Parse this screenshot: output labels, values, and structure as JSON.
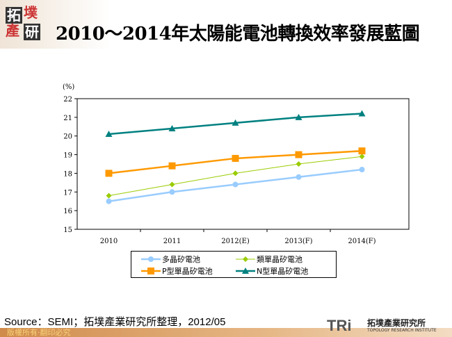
{
  "header": {
    "logo_text": "拓墣產研",
    "title": "2010～2014年太陽能電池轉換效率發展藍圖"
  },
  "chart_data": {
    "type": "line",
    "title": "",
    "ylabel": "(%)",
    "xlabel": "",
    "categories": [
      "2010",
      "2011",
      "2012(E)",
      "2013(F)",
      "2014(F)"
    ],
    "ylim": [
      15,
      22
    ],
    "yticks": [
      "15",
      "16",
      "17",
      "18",
      "19",
      "20",
      "21",
      "22"
    ],
    "grid": false,
    "legend_position": "bottom",
    "series": [
      {
        "name": "多晶矽電池",
        "values": [
          16.5,
          17.0,
          17.4,
          17.8,
          18.2
        ],
        "color": "#99ccff",
        "marker": "circle"
      },
      {
        "name": "類單晶矽電池",
        "values": [
          16.8,
          17.4,
          18.0,
          18.5,
          18.9
        ],
        "color": "#99cc00",
        "marker": "diamond"
      },
      {
        "name": "P型單晶矽電池",
        "values": [
          18.0,
          18.4,
          18.8,
          19.0,
          19.2
        ],
        "color": "#ff9900",
        "marker": "square"
      },
      {
        "name": "N型單晶矽電池",
        "values": [
          20.1,
          20.4,
          20.7,
          21.0,
          21.2
        ],
        "color": "#008080",
        "marker": "triangle"
      }
    ]
  },
  "footer": {
    "source": "Source：SEMI；拓墣產業研究所整理，2012/05",
    "copyright": "版權所有‧翻印必究",
    "tri_logo": "TRi",
    "tri_name_cn": "拓墣產業研究所",
    "tri_name_en": "TOPOLOGY RESEARCH INSTITUTE"
  }
}
